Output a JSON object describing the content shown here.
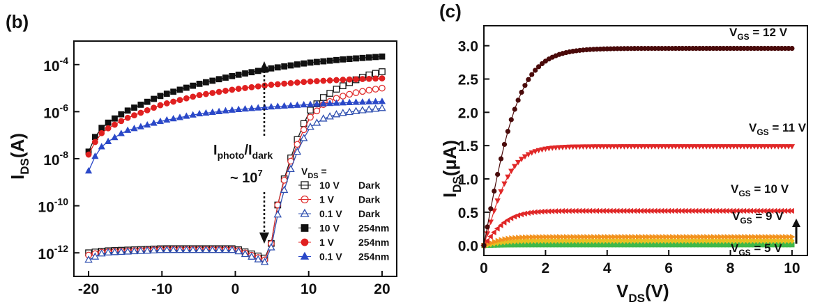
{
  "figure": {
    "left_panel": {
      "panel_label": "(b)",
      "y_axis_label": "I",
      "y_axis_label_sub": "DS",
      "y_axis_label_unit": "(A)",
      "annotation_ratio_num": "I",
      "annotation_ratio_num_sub": "photo",
      "annotation_ratio_den": "/I",
      "annotation_ratio_den_sub": "dark",
      "annotation_value": "~ 10",
      "annotation_value_exp": "7",
      "legend_title": "V",
      "legend_title_sub": "DS",
      "legend_title_suffix": " ="
    },
    "right_panel": {
      "panel_label": "(c)",
      "y_axis_label": "I",
      "y_axis_label_sub": "DS",
      "y_axis_label_unit": "(μA)",
      "x_axis_label": "V",
      "x_axis_label_sub": "DS",
      "x_axis_label_unit": "(V)"
    }
  },
  "chart_data": [
    {
      "type": "scatter",
      "panel": "(b)",
      "y_scale": "log",
      "xlim": [
        -22,
        22
      ],
      "ylim": [
        1e-13,
        0.001
      ],
      "x_ticks": [
        -20,
        -10,
        0,
        10,
        20
      ],
      "y_ticks": [
        1e-12,
        1e-10,
        1e-08,
        1e-06,
        0.0001
      ],
      "y_tick_labels": [
        {
          "base": "10",
          "exp": "-12"
        },
        {
          "base": "10",
          "exp": "-10"
        },
        {
          "base": "10",
          "exp": "-8"
        },
        {
          "base": "10",
          "exp": "-6"
        },
        {
          "base": "10",
          "exp": "-4"
        }
      ],
      "xlabel": "",
      "ylabel": "IDS(A)",
      "legend_position": "bottom-right",
      "series": [
        {
          "name": "10 V  Dark",
          "label_v": "10 V",
          "label_c": "Dark",
          "marker": "square",
          "filled": false,
          "color": "#1a1a1a",
          "x": [
            -20,
            -18,
            -10,
            0,
            4,
            5,
            6,
            8,
            10,
            12,
            14,
            16,
            18,
            20
          ],
          "y": [
            1e-12,
            1.2e-12,
            1.5e-12,
            1.5e-12,
            6e-13,
            3e-12,
            3e-10,
            3e-08,
            1e-06,
            4e-06,
            1e-05,
            2e-05,
            3.5e-05,
            5e-05
          ]
        },
        {
          "name": "1 V   Dark",
          "label_v": "1 V",
          "label_c": "Dark",
          "marker": "circle",
          "filled": false,
          "color": "#e03030",
          "x": [
            -20,
            -18,
            -10,
            0,
            4,
            5,
            6,
            8,
            10,
            12,
            14,
            16,
            18,
            20
          ],
          "y": [
            8e-13,
            1.1e-12,
            1.4e-12,
            1.4e-12,
            5e-13,
            3e-12,
            3e-10,
            2e-08,
            5e-07,
            2e-06,
            4e-06,
            6e-06,
            8e-06,
            1e-05
          ]
        },
        {
          "name": "0.1 V Dark",
          "label_v": "0.1 V",
          "label_c": "Dark",
          "marker": "triangle",
          "filled": false,
          "color": "#3050b0",
          "x": [
            -20,
            -18,
            -10,
            0,
            4,
            5,
            6,
            8,
            10,
            12,
            14,
            16,
            18,
            20
          ],
          "y": [
            5e-13,
            1e-12,
            1.3e-12,
            1.3e-12,
            4e-13,
            2e-12,
            1e-10,
            1e-08,
            2e-07,
            5e-07,
            8e-07,
            1e-06,
            1.2e-06,
            1.4e-06
          ]
        },
        {
          "name": "10 V  254nm",
          "label_v": "10 V",
          "label_c": "254nm",
          "marker": "square",
          "filled": true,
          "color": "#111111",
          "x": [
            -20,
            -19,
            -18,
            -15,
            -10,
            -5,
            0,
            5,
            10,
            15,
            20
          ],
          "y": [
            2e-08,
            1e-07,
            2.5e-07,
            1e-06,
            5e-06,
            1.5e-05,
            3.5e-05,
            7e-05,
            0.00012,
            0.00017,
            0.00022
          ]
        },
        {
          "name": "1 V   254nm",
          "label_v": "1 V",
          "label_c": "254nm",
          "marker": "circle",
          "filled": true,
          "color": "#e02020",
          "x": [
            -20,
            -19,
            -18,
            -15,
            -10,
            -5,
            0,
            5,
            10,
            15,
            20
          ],
          "y": [
            1.5e-08,
            6e-08,
            1.5e-07,
            5e-07,
            2e-06,
            5e-06,
            9e-06,
            1.4e-05,
            1.9e-05,
            2.3e-05,
            2.6e-05
          ]
        },
        {
          "name": "0.1 V 254nm",
          "label_v": "0.1 V",
          "label_c": "254nm",
          "marker": "triangle",
          "filled": true,
          "color": "#2a48c8",
          "x": [
            -20,
            -19,
            -18,
            -15,
            -10,
            -5,
            0,
            5,
            10,
            15,
            20
          ],
          "y": [
            3e-09,
            1.5e-08,
            4e-08,
            1.5e-07,
            4e-07,
            8e-07,
            1.2e-06,
            1.6e-06,
            2e-06,
            2.4e-06,
            2.7e-06
          ]
        }
      ]
    },
    {
      "type": "line",
      "panel": "(c)",
      "xlim": [
        0,
        10.5
      ],
      "ylim": [
        -0.15,
        3.3
      ],
      "x_ticks": [
        0,
        2,
        4,
        6,
        8,
        10
      ],
      "y_ticks": [
        0.0,
        0.5,
        1.0,
        1.5,
        2.0,
        2.5,
        3.0
      ],
      "xlabel": "VDS(V)",
      "ylabel": "IDS(μA)",
      "series": [
        {
          "name": "VGS = 12 V",
          "label_main": "V",
          "label_sub": "GS",
          "label_rest": " = 12 V",
          "marker": "circle",
          "color": "#4a0a0a",
          "isat": 2.96,
          "k": 0.85
        },
        {
          "name": "VGS = 11 V",
          "label_main": "V",
          "label_sub": "GS",
          "label_rest": " = 11 V",
          "marker": "triangle-down",
          "color": "#e02828",
          "isat": 1.49,
          "k": 1.1
        },
        {
          "name": "VGS = 10 V",
          "label_main": "V",
          "label_sub": "GS",
          "label_rest": " = 10 V",
          "marker": "triangle-left",
          "color": "#e02828",
          "isat": 0.52,
          "k": 1.2
        },
        {
          "name": "VGS = 9 V",
          "label_main": "V",
          "label_sub": "GS",
          "label_rest": " = 9 V",
          "marker": "triangle-right",
          "color": "#f2921e",
          "isat": 0.13,
          "k": 1.4
        },
        {
          "name": "",
          "label_main": "",
          "label_sub": "",
          "label_rest": "",
          "marker": "diamond",
          "color": "#e8c020",
          "isat": 0.07,
          "k": 1.4
        },
        {
          "name": "VGS = 5 V",
          "label_main": "V",
          "label_sub": "GS",
          "label_rest": " = 5 V",
          "marker": "square",
          "color": "#40b848",
          "isat": 0.01,
          "k": 1.5
        }
      ]
    }
  ]
}
